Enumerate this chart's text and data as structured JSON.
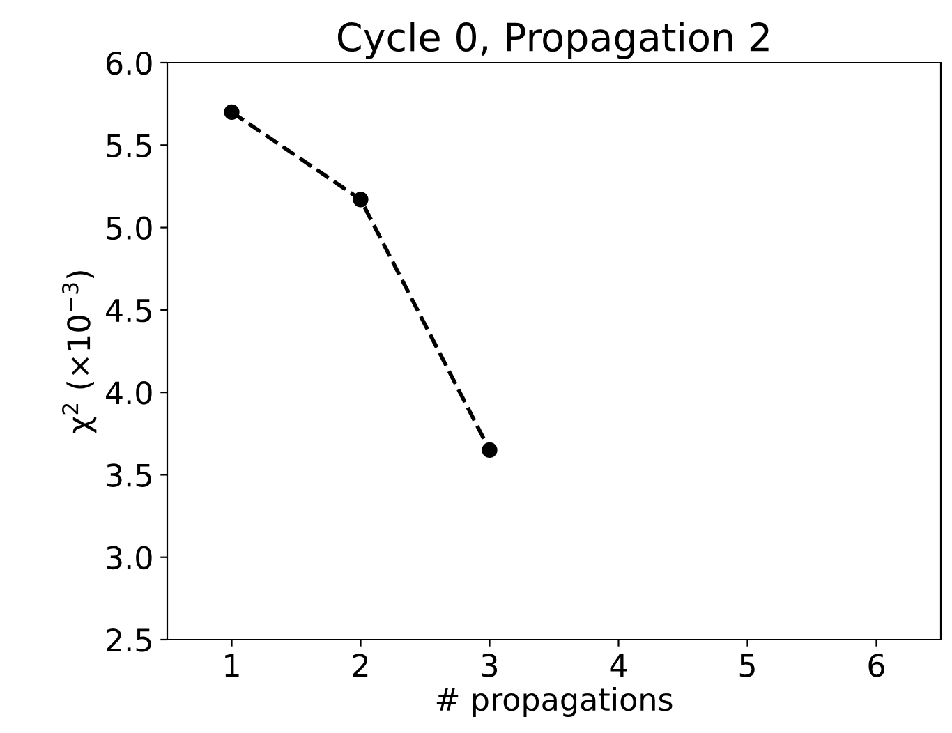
{
  "chart_data": {
    "type": "line",
    "title": "Cycle 0, Propagation 2",
    "xlabel": "# propagations",
    "ylabel": "χ$^{2}$ (×10$^{−3}$)",
    "x": [
      1,
      2,
      3
    ],
    "series": [
      {
        "color": "#000000",
        "values": [
          5.7,
          5.17,
          3.65
        ]
      }
    ],
    "marker": "circle",
    "line_style": "dashed",
    "xlim": [
      0.5,
      6.5
    ],
    "xticks": [
      1,
      2,
      3,
      4,
      5,
      6
    ],
    "ylim": [
      2.5,
      6.0
    ],
    "yticks": [
      {
        "value": 2.5,
        "label": "2.5"
      },
      {
        "value": 3.0,
        "label": "3.0"
      },
      {
        "value": 3.5,
        "label": "3.5"
      },
      {
        "value": 4.0,
        "label": "4.0"
      },
      {
        "value": 4.5,
        "label": "4.5"
      },
      {
        "value": 5.0,
        "label": "5.0"
      },
      {
        "value": 5.5,
        "label": "5.5"
      },
      {
        "value": 6.0,
        "label": "6.0"
      }
    ],
    "grid": false,
    "legend": false
  }
}
